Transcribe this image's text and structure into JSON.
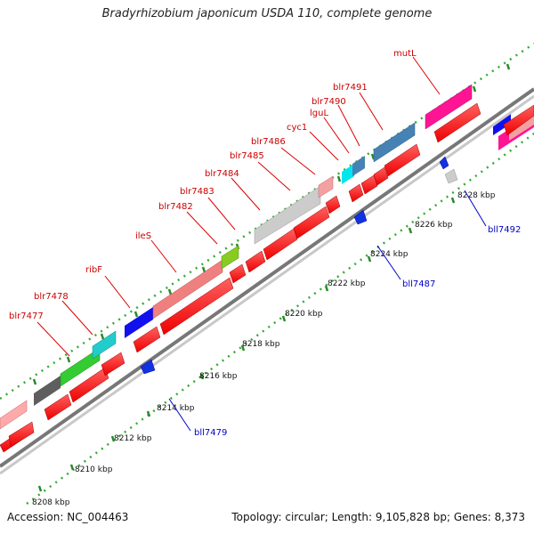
{
  "title": "Bradyrhizobium japonicum USDA 110, complete genome",
  "footer": {
    "accession": "Accession: NC_004463",
    "stats": "Topology: circular; Length: 9,105,828 bp; Genes: 8,373"
  },
  "scale_labels": [
    {
      "pos_kbp": 8208,
      "text": "8208 kbp"
    },
    {
      "pos_kbp": 8210,
      "text": "8210 kbp"
    },
    {
      "pos_kbp": 8212,
      "text": "8212 kbp"
    },
    {
      "pos_kbp": 8214,
      "text": "8214 kbp"
    },
    {
      "pos_kbp": 8216,
      "text": "8216 kbp"
    },
    {
      "pos_kbp": 8218,
      "text": "8218 kbp"
    },
    {
      "pos_kbp": 8220,
      "text": "8220 kbp"
    },
    {
      "pos_kbp": 8222,
      "text": "8222 kbp"
    },
    {
      "pos_kbp": 8224,
      "text": "8224 kbp"
    },
    {
      "pos_kbp": 8226,
      "text": "8226 kbp"
    },
    {
      "pos_kbp": 8228,
      "text": "8228 kbp"
    }
  ],
  "genes": [
    {
      "name": "blr7477",
      "strand": "+",
      "color": "#7f7f7f",
      "label_color": "#cc0000"
    },
    {
      "name": "blr7478",
      "strand": "+",
      "color": "#33cc33",
      "label_color": "#cc0000"
    },
    {
      "name": "ribF",
      "strand": "+",
      "color": "#22cccc",
      "label_color": "#cc0000"
    },
    {
      "name": "ileS",
      "strand": "+",
      "color": "#f08080",
      "label_color": "#cc0000"
    },
    {
      "name": "blr7482",
      "strand": "+",
      "color": "#99cc33",
      "label_color": "#cc0000"
    },
    {
      "name": "blr7483",
      "strand": "+",
      "color": "#cccccc",
      "label_color": "#cc0000"
    },
    {
      "name": "blr7484",
      "strand": "+",
      "color": "#cccccc",
      "label_color": "#cc0000"
    },
    {
      "name": "blr7485",
      "strand": "+",
      "color": "#cccccc",
      "label_color": "#cc0000"
    },
    {
      "name": "blr7486",
      "strand": "+",
      "color": "#f4a0a0",
      "label_color": "#cc0000"
    },
    {
      "name": "cyc1",
      "strand": "+",
      "color": "#22d8e8",
      "label_color": "#cc0000"
    },
    {
      "name": "lguL",
      "strand": "+",
      "color": "#4682b4",
      "label_color": "#cc0000"
    },
    {
      "name": "blr7490",
      "strand": "+",
      "color": "#4682b4",
      "label_color": "#cc0000"
    },
    {
      "name": "blr7491",
      "strand": "+",
      "color": "#4682b4",
      "label_color": "#cc0000"
    },
    {
      "name": "mutL",
      "strand": "+",
      "color": "#ff1493",
      "label_color": "#cc0000"
    },
    {
      "name": "bll7479",
      "strand": "-",
      "color": "#0000ff",
      "label_color": "#0000cc"
    },
    {
      "name": "bll7487",
      "strand": "-",
      "color": "#0000ff",
      "label_color": "#0000cc"
    },
    {
      "name": "bll7492",
      "strand": "-",
      "color": "#0000ff",
      "label_color": "#0000cc"
    }
  ]
}
